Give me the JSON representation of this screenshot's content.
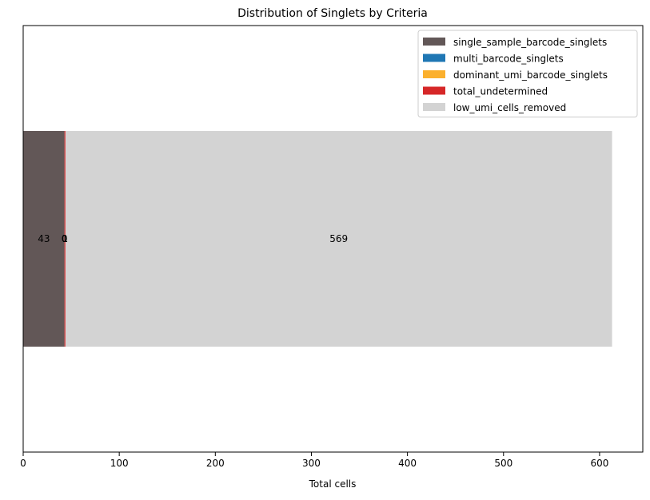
{
  "chart_data": {
    "type": "bar",
    "orientation": "horizontal",
    "stacked": true,
    "title": "Distribution of Singlets by Criteria",
    "xlabel": "Total cells",
    "ylabel": "",
    "xlim": [
      0,
      645
    ],
    "xticks": [
      0,
      100,
      200,
      300,
      400,
      500,
      600
    ],
    "grid": false,
    "legend_position": "top-right",
    "series": [
      {
        "name": "single_sample_barcode_singlets",
        "value": 43,
        "label": "43",
        "color": "#625757"
      },
      {
        "name": "multi_barcode_singlets",
        "value": 0,
        "label": "0",
        "color": "#1f77b4"
      },
      {
        "name": "dominant_umi_barcode_singlets",
        "value": 0,
        "label": "0",
        "color": "#fbb02d"
      },
      {
        "name": "total_undetermined",
        "value": 1,
        "label": "1",
        "color": "#d62728"
      },
      {
        "name": "low_umi_cells_removed",
        "value": 569,
        "label": "569",
        "color": "#d3d3d3"
      }
    ]
  }
}
